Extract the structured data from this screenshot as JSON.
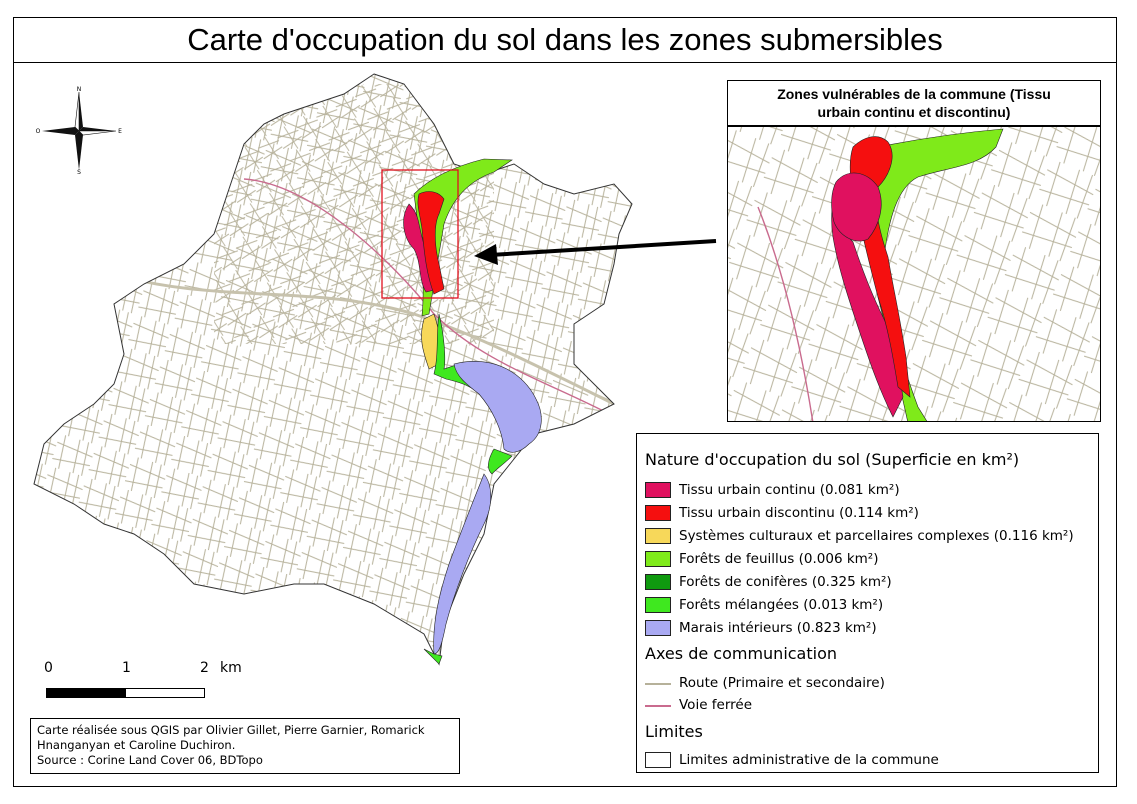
{
  "title": "Carte d'occupation du sol dans les zones submersibles",
  "inset": {
    "title_line1": "Zones vulnérables de la commune (Tissu",
    "title_line2": "urbain continu et discontinu)"
  },
  "compass": {
    "n": "N",
    "s": "S",
    "e": "E",
    "o": "O"
  },
  "legend": {
    "heading_land": "Nature d'occupation du sol (Superficie en km²)",
    "land_items": [
      {
        "label": "Tissu urbain continu (0.081 km²)",
        "color": "#e0115f"
      },
      {
        "label": "Tissu urbain discontinu (0.114 km²)",
        "color": "#f50f0f"
      },
      {
        "label": "Systèmes culturaux et parcellaires complexes (0.116 km²)",
        "color": "#f7d85a"
      },
      {
        "label": "Forêts de feuillus (0.006 km²)",
        "color": "#7fea1a"
      },
      {
        "label": "Forêts de conifères (0.325 km²)",
        "color": "#0f9a0f"
      },
      {
        "label": "Forêts mélangées (0.013 km²)",
        "color": "#3fe81f"
      },
      {
        "label": "Marais intérieurs (0.823 km²)",
        "color": "#a9a9f2"
      }
    ],
    "heading_comm": "Axes de communication",
    "comm_items": [
      {
        "label": "Route (Primaire et secondaire)",
        "color": "#b6b19a"
      },
      {
        "label": "Voie ferrée",
        "color": "#c96b8e"
      }
    ],
    "heading_limits": "Limites",
    "limit_items": [
      {
        "label": "Limites administrative de la commune"
      }
    ]
  },
  "scalebar": {
    "l0": "0",
    "l1": "1",
    "l2": "2",
    "unit": "km"
  },
  "credits": {
    "line1": "Carte réalisée sous QGIS par Olivier Gillet, Pierre Garnier, Romarick",
    "line2": "Hnanganyan et Caroline Duchiron.",
    "line3": "Source : Corine Land Cover 06, BDTopo"
  }
}
